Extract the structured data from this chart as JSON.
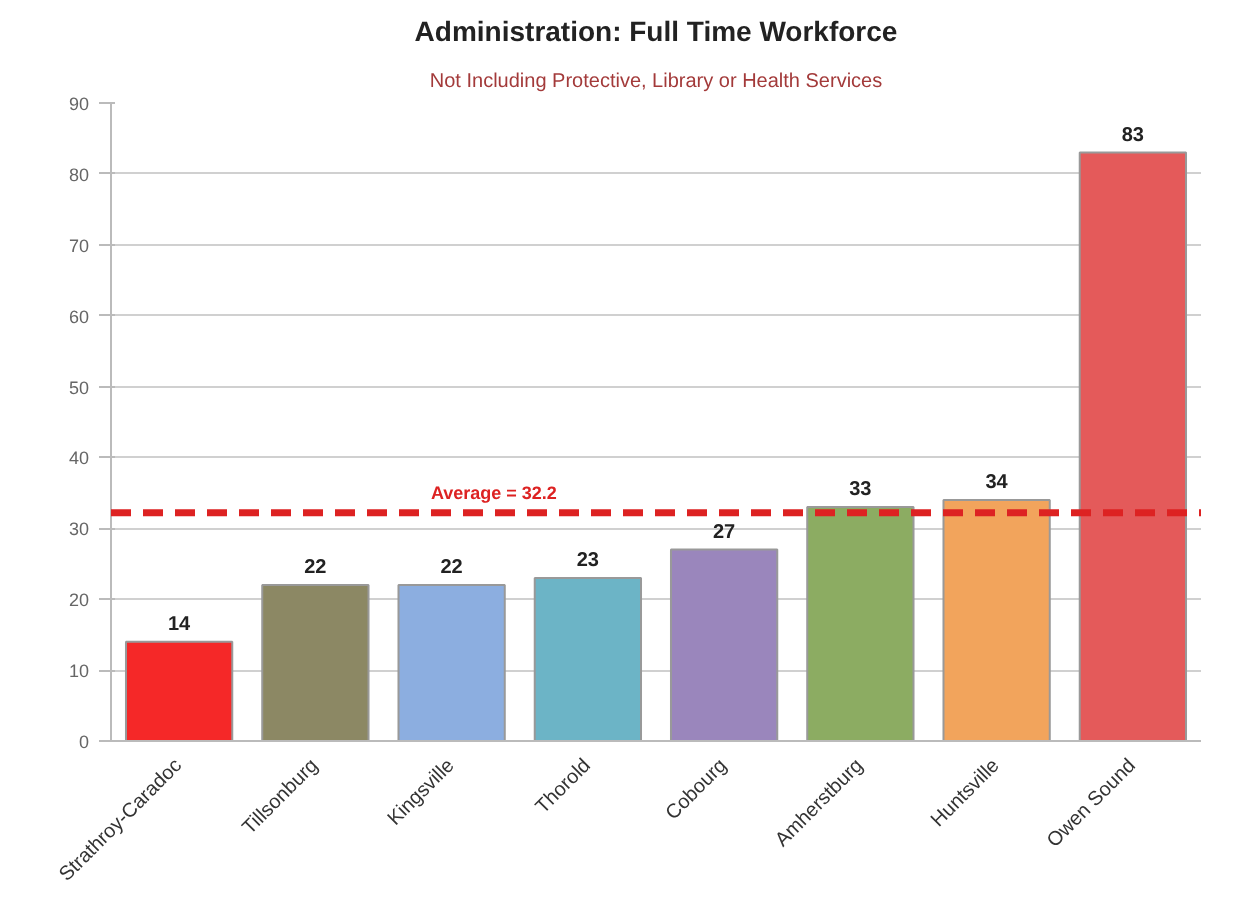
{
  "chart_data": {
    "type": "bar",
    "title": "Administration: Full Time Workforce",
    "subtitle": "Not Including Protective, Library or Health Services",
    "categories": [
      "Strathroy-Caradoc",
      "Tillsonburg",
      "Kingsville",
      "Thorold",
      "Cobourg",
      "Amherstburg",
      "Huntsville",
      "Owen Sound"
    ],
    "values": [
      14,
      22,
      22,
      23,
      27,
      33,
      34,
      83
    ],
    "colors": [
      "#f52828",
      "#8c8864",
      "#8caee0",
      "#6cb4c6",
      "#9a86bc",
      "#8cac62",
      "#f2a45c",
      "#e45a5a"
    ],
    "ylim": [
      0,
      90
    ],
    "yticks": [
      0,
      10,
      20,
      30,
      40,
      50,
      60,
      70,
      80,
      90
    ],
    "grid": "y",
    "data_labels": true,
    "ref_lines": [
      {
        "axis": "y",
        "value": 32.2,
        "label": "Average = 32.2",
        "color": "#dd2222",
        "line_style": "dashed"
      }
    ]
  }
}
